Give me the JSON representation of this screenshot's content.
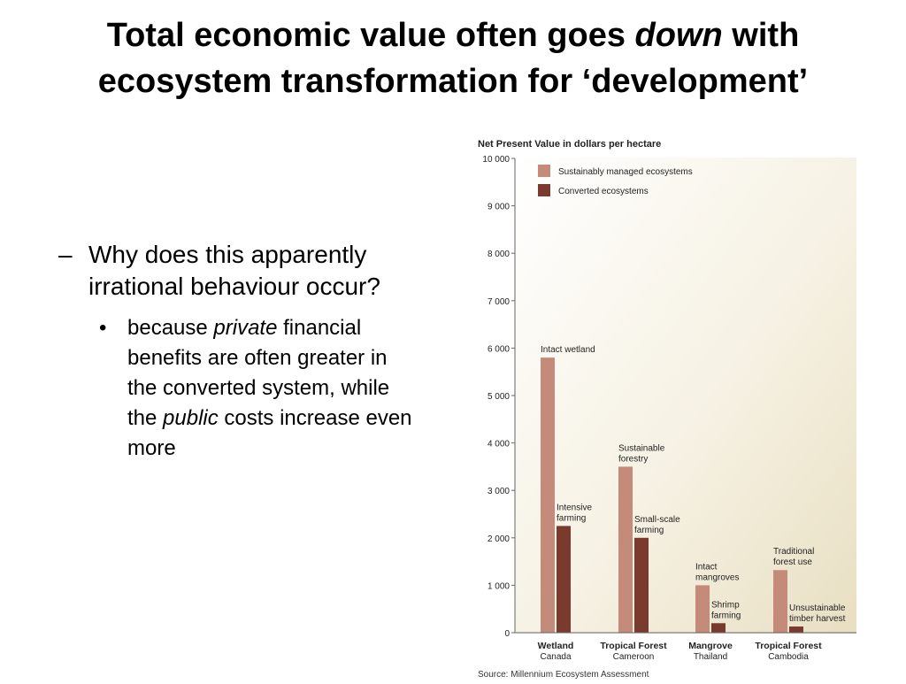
{
  "slide": {
    "title_line1_pre": "Total economic value often goes ",
    "title_line1_em": "down",
    "title_line1_post": "  with",
    "title_line2": "ecosystem transformation for ‘development’",
    "bullet1": "Why does this apparently irrational behaviour occur?",
    "bullet2_part1": "because ",
    "bullet2_em1": "private",
    "bullet2_part2": " financial benefits are often greater in the converted system, while the ",
    "bullet2_em2": "public",
    "bullet2_part3": " costs increase even more"
  },
  "chart_data": {
    "type": "bar",
    "title": "Net Present Value in dollars per hectare",
    "categories": [
      {
        "name": "Wetland",
        "sub": "Canada"
      },
      {
        "name": "Tropical Forest",
        "sub": "Cameroon"
      },
      {
        "name": "Mangrove",
        "sub": "Thailand"
      },
      {
        "name": "Tropical Forest",
        "sub": "Cambodia"
      }
    ],
    "series": [
      {
        "name": "Sustainably managed ecosystems",
        "color": "#c48b7b",
        "values": [
          5800,
          3500,
          1000,
          1320
        ]
      },
      {
        "name": "Converted ecosystems",
        "color": "#7a3b2e",
        "values": [
          2250,
          2000,
          200,
          130
        ]
      }
    ],
    "bar_labels": [
      [
        "Intact wetland",
        "Intensive|farming"
      ],
      [
        "Sustainable|forestry",
        "Small-scale|farming"
      ],
      [
        "Intact|mangroves",
        "Shrimp|farming"
      ],
      [
        "Traditional|forest use",
        "Unsustainable|timber harvest"
      ]
    ],
    "yticks": [
      "0",
      "1 000",
      "2 000",
      "3 000",
      "4 000",
      "5 000",
      "6 000",
      "7 000",
      "8 000",
      "9 000",
      "10 000"
    ],
    "ylim": [
      0,
      10000
    ],
    "legend_position": "top-left",
    "source": "Source: Millennium Ecosystem Assessment"
  }
}
